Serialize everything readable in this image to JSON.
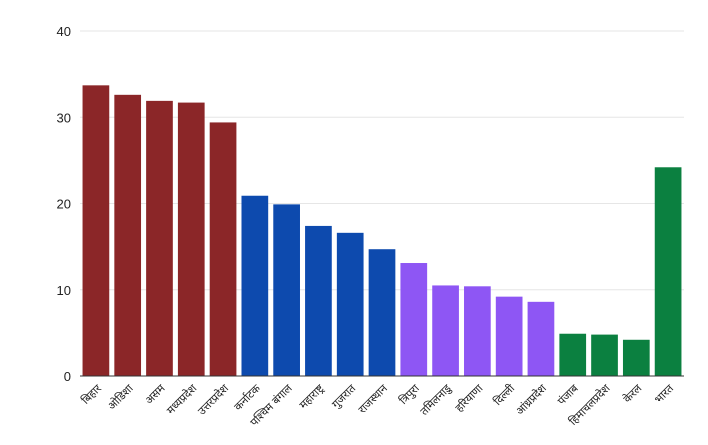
{
  "chart_data": {
    "type": "bar",
    "title": "",
    "xlabel": "",
    "ylabel": "",
    "ylim": [
      0,
      40
    ],
    "yticks": [
      "0",
      "10",
      "20",
      "30",
      "40"
    ],
    "grid": true,
    "legend": "none",
    "categories": [
      "बिहार",
      "ओडिशा",
      "असम",
      "मध्यप्रदेश",
      "उत्तरप्रदेश",
      "कर्नाटक",
      "पश्चिम बंगाल",
      "महाराष्ट्र",
      "गुजरात",
      "राजस्थान",
      "त्रिपुरा",
      "तमिलनाडु",
      "हरियाणा",
      "दिल्ली",
      "आंध्रप्रदेश",
      "पंजाब",
      "हिमाचलप्रदेश",
      "केरल",
      "भारत"
    ],
    "values": [
      33.7,
      32.6,
      31.9,
      31.7,
      29.4,
      20.9,
      19.9,
      17.4,
      16.6,
      14.7,
      13.1,
      10.5,
      10.4,
      9.2,
      8.6,
      4.9,
      4.8,
      4.2,
      24.2
    ],
    "groups": [
      {
        "color": "#8b2628",
        "count": 5
      },
      {
        "color": "#0d4aae",
        "count": 5
      },
      {
        "color": "#8e56f4",
        "count": 5
      },
      {
        "color": "#0b8040",
        "count": 4
      }
    ]
  }
}
